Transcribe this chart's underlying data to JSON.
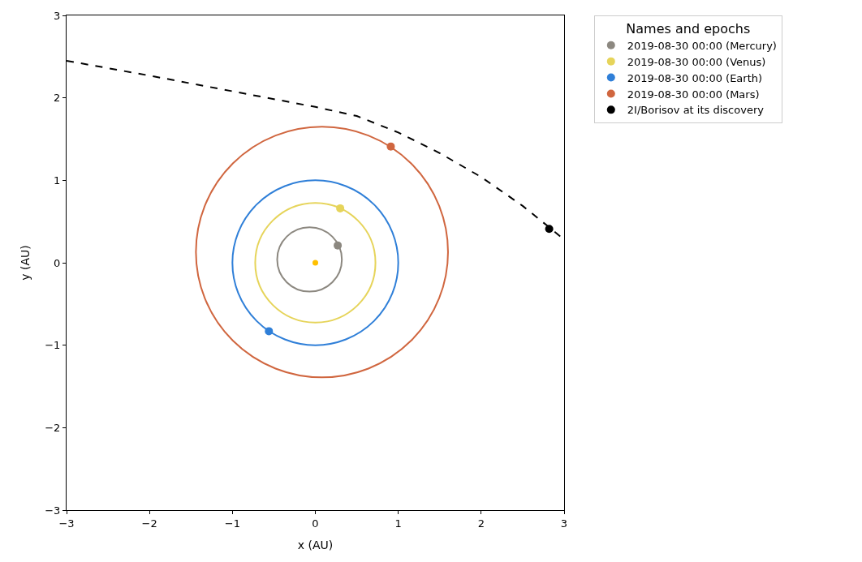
{
  "chart_data": {
    "type": "scatter",
    "xlabel": "x (AU)",
    "ylabel": "y (AU)",
    "legend_title": "Names and epochs",
    "legend": "top right",
    "grid": false,
    "xlim": [
      -3,
      3
    ],
    "ylim": [
      -3,
      3
    ],
    "xticks": [
      -3,
      -2,
      -1,
      0,
      1,
      2,
      3
    ],
    "yticks": [
      -3,
      -2,
      -1,
      0,
      1,
      2,
      3
    ],
    "series": [
      {
        "type": "line",
        "color": "#000000",
        "line_style": "dashed",
        "marker": "none",
        "x": [
          -3,
          -2,
          -1,
          0,
          0.5,
          1,
          1.5,
          2,
          2.5,
          2.82,
          3
        ],
        "values": [
          2.45,
          2.27,
          2.08,
          1.89,
          1.78,
          1.58,
          1.33,
          1.04,
          0.69,
          0.43,
          0.28
        ]
      },
      {
        "color": "#ffc000",
        "marker": "circle",
        "x": [
          0
        ],
        "values": [
          0
        ]
      },
      {
        "name": "2019-08-30 00:00 (Mercury)",
        "color": "#8c8880",
        "marker": "circle",
        "x": [
          0.27
        ],
        "values": [
          0.21
        ]
      },
      {
        "name": "2019-08-30 00:00 (Venus)",
        "color": "#e6d45a",
        "marker": "circle",
        "x": [
          0.3
        ],
        "values": [
          0.66
        ]
      },
      {
        "name": "2019-08-30 00:00 (Earth)",
        "color": "#2f7fd8",
        "marker": "circle",
        "x": [
          -0.56
        ],
        "values": [
          -0.83
        ]
      },
      {
        "name": "2019-08-30 00:00 (Mars)",
        "color": "#d0663f",
        "marker": "circle",
        "x": [
          0.91
        ],
        "values": [
          1.41
        ]
      },
      {
        "name": "2I/Borisov at its discovery",
        "color": "#000000",
        "marker": "circle",
        "x": [
          2.82
        ],
        "values": [
          0.41
        ]
      }
    ]
  }
}
